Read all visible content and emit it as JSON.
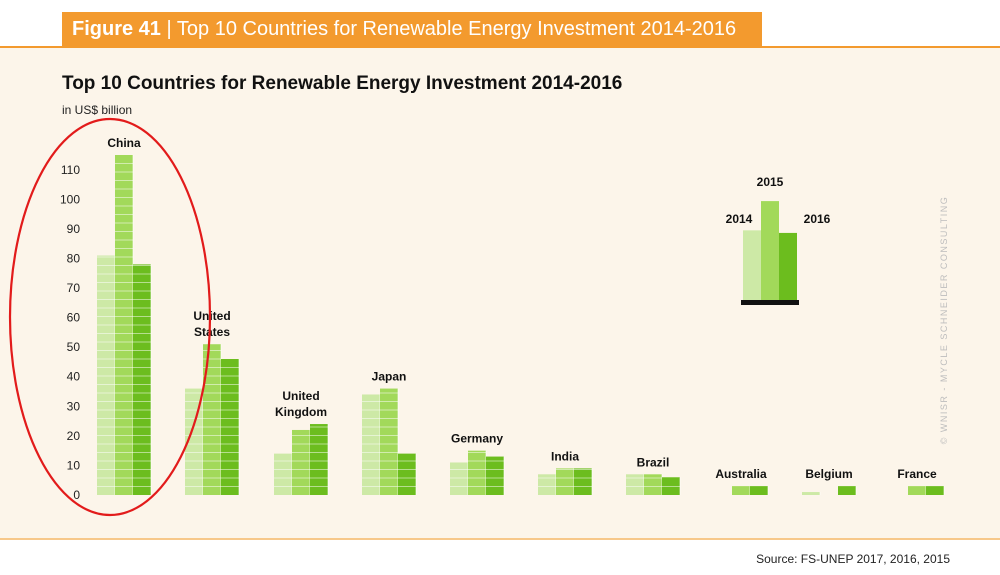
{
  "figure_banner": {
    "label": "Figure 41",
    "separator": "|",
    "title": "Top 10 Countries for Renewable Energy Investment 2014-2016"
  },
  "chart_title": "Top 10 Countries for Renewable Energy Investment 2014-2016",
  "unit_label": "in US$ billion",
  "source": "Source: FS-UNEP 2017, 2016, 2015",
  "credit": "© WNISR - MYCLE SCHNEIDER CONSULTING",
  "colors": {
    "y2014": "#cde9a6",
    "y2015": "#a2d95a",
    "y2016": "#6cbd1e",
    "banner": "#f39a2e",
    "highlight": "#e21b1b",
    "panel": "#fcf5ea"
  },
  "chart_data": {
    "type": "bar",
    "title": "Top 10 Countries for Renewable Energy Investment 2014-2016",
    "ylabel": "in US$ billion",
    "xlabel": "",
    "ylim": [
      0,
      115
    ],
    "yticks": [
      0,
      10,
      20,
      30,
      40,
      50,
      60,
      70,
      80,
      90,
      100,
      110
    ],
    "grid": false,
    "categories": [
      "China",
      "United States",
      "United Kingdom",
      "Japan",
      "Germany",
      "India",
      "Brazil",
      "Australia",
      "Belgium",
      "France"
    ],
    "series": [
      {
        "name": "2014",
        "values": [
          81,
          36,
          14,
          34,
          11,
          7,
          7,
          0,
          1,
          0
        ]
      },
      {
        "name": "2015",
        "values": [
          115,
          51,
          22,
          36,
          15,
          9,
          7,
          3,
          0,
          3
        ]
      },
      {
        "name": "2016",
        "values": [
          78,
          46,
          24,
          14,
          13,
          9,
          6,
          3,
          3,
          3
        ]
      }
    ],
    "legend": {
      "position": "top-right",
      "labels": [
        "2014",
        "2015",
        "2016"
      ]
    },
    "annotations": [
      "red ellipse highlighting China"
    ]
  }
}
